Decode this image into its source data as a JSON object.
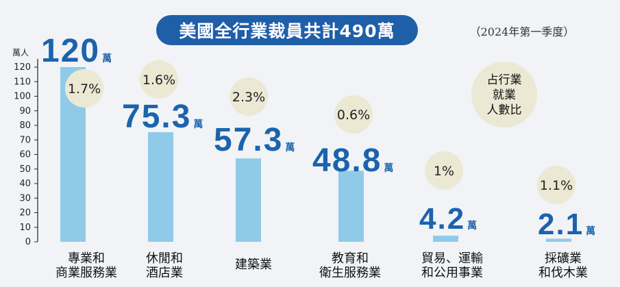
{
  "colors": {
    "bar": "#8fcbe8",
    "value_text": "#1b63ad",
    "circle": "#ebe8d4",
    "title_bg": "#1f5fa8",
    "axis": "#222222"
  },
  "chart_data": {
    "type": "bar",
    "title": "美國全行業裁員共計490萬",
    "subtitle": "（2024年第一季度）",
    "xlabel": "",
    "ylabel": "萬人",
    "ylim": [
      0,
      120
    ],
    "yticks": [
      0,
      10,
      20,
      30,
      40,
      50,
      60,
      70,
      80,
      90,
      100,
      110,
      120
    ],
    "categories": [
      [
        "專業和",
        "商業服務業"
      ],
      [
        "休閒和",
        "酒店業"
      ],
      [
        "建築業"
      ],
      [
        "教育和",
        "衛生服務業"
      ],
      [
        "貿易、運輸",
        "和公用事業"
      ],
      [
        "採礦業",
        "和伐木業"
      ]
    ],
    "values": [
      120,
      75.3,
      57.3,
      48.8,
      4.2,
      2.1
    ],
    "value_labels": [
      "120",
      "75.3",
      "57.3",
      "48.8",
      "4.2",
      "2.1"
    ],
    "unit": "萬",
    "share_labels": [
      "1.7%",
      "1.6%",
      "2.3%",
      "0.6%",
      "1%",
      "1.1%"
    ],
    "share_legend": [
      "占行業",
      "就業",
      "人數比"
    ],
    "grid": false
  }
}
